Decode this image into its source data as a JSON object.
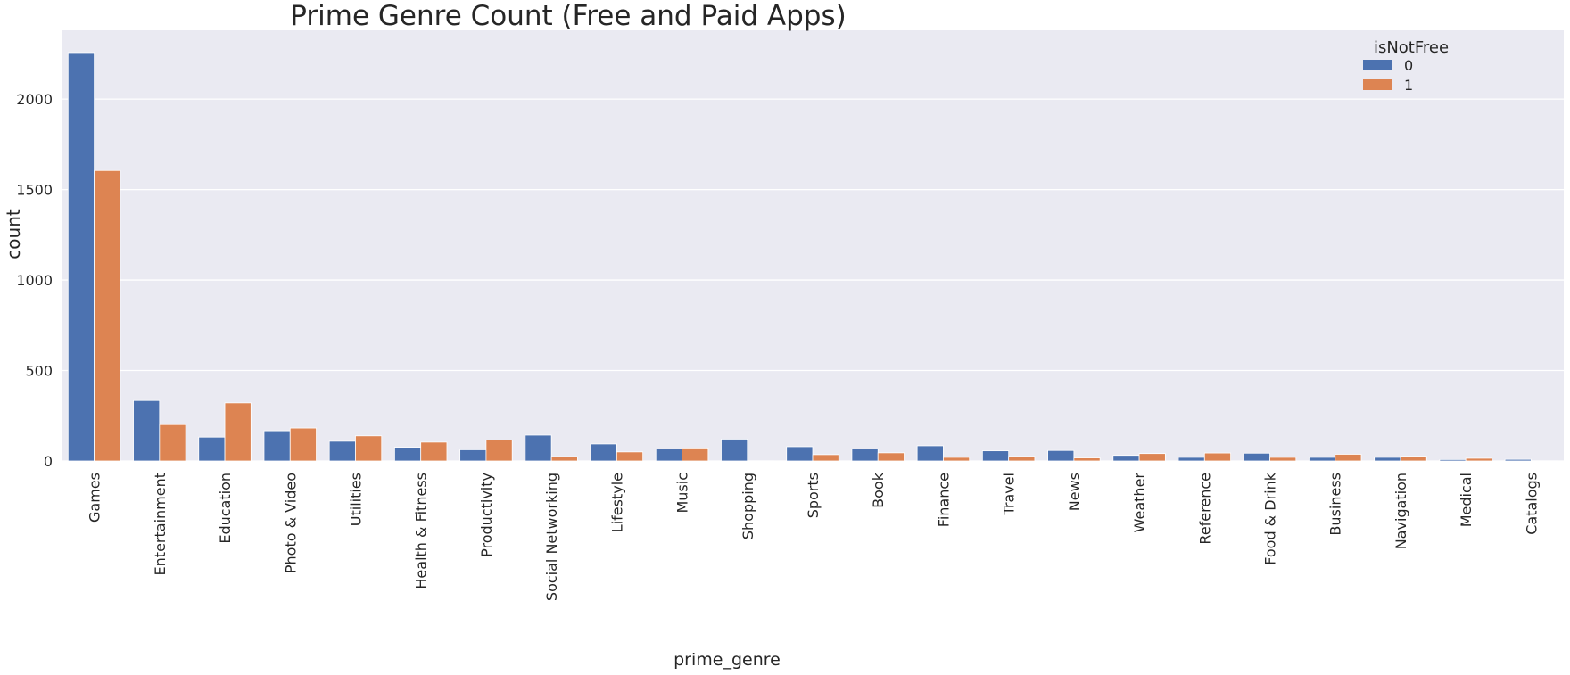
{
  "chart_data": {
    "type": "bar",
    "title": "Prime Genre Count (Free and Paid Apps)",
    "xlabel": "prime_genre",
    "ylabel": "count",
    "ylim": [
      0,
      2380
    ],
    "yticks": [
      0,
      500,
      1000,
      1500,
      2000
    ],
    "grid": true,
    "legend_title": "isNotFree",
    "legend_position": "top-right",
    "categories": [
      "Games",
      "Entertainment",
      "Education",
      "Photo & Video",
      "Utilities",
      "Health & Fitness",
      "Productivity",
      "Social Networking",
      "Lifestyle",
      "Music",
      "Shopping",
      "Sports",
      "Book",
      "Finance",
      "Travel",
      "News",
      "Weather",
      "Reference",
      "Food & Drink",
      "Business",
      "Navigation",
      "Medical",
      "Catalogs"
    ],
    "series": [
      {
        "name": "0",
        "color": "#4c72b0",
        "values": [
          2257,
          334,
          132,
          167,
          109,
          76,
          62,
          143,
          94,
          66,
          121,
          79,
          66,
          84,
          56,
          58,
          31,
          20,
          43,
          20,
          20,
          8,
          9
        ]
      },
      {
        "name": "1",
        "color": "#dd8452",
        "values": [
          1605,
          201,
          321,
          182,
          139,
          104,
          116,
          24,
          50,
          72,
          1,
          35,
          45,
          20,
          25,
          17,
          41,
          44,
          20,
          37,
          26,
          15,
          1
        ]
      }
    ]
  },
  "style": {
    "plot_background": "#eaeaf2",
    "grid_color": "#ffffff"
  }
}
